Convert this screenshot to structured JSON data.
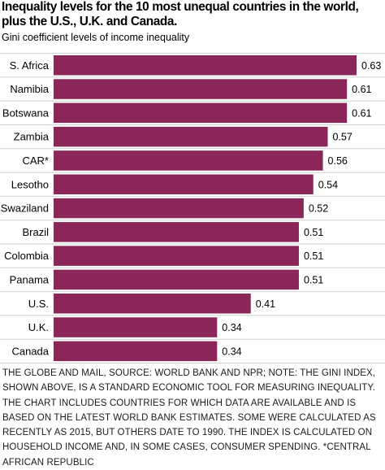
{
  "title": "Inequality levels for the 10 most unequal countries in the world, plus the U.S., U.K. and Canada.",
  "subtitle": "Gini coefficient levels of income inequality",
  "note": "THE GLOBE AND MAIL, SOURCE: WORLD BANK AND NPR; NOTE: THE GINI INDEX, SHOWN ABOVE, IS A STANDARD ECONOMIC TOOL FOR MEASURING INEQUALITY. THE CHART INCLUDES COUNTRIES FOR WHICH DATA ARE AVAILABLE AND IS BASED ON THE LATEST WORLD BANK ESTIMATES. SOME WERE CALCULATED AS RECENTLY AS 2015, BUT OTHERS DATE TO 1990. THE INDEX IS CALCULATED ON HOUSEHOLD INCOME AND, IN SOME CASES, CONSUMER SPENDING. *CENTRAL AFRICAN REPUBLIC",
  "colors": {
    "bar": "#8a2758",
    "grid": "#cfcfcf",
    "text": "#000000"
  },
  "chart_data": {
    "type": "bar",
    "orientation": "horizontal",
    "title": "Inequality levels for the 10 most unequal countries in the world, plus the U.S., U.K. and Canada.",
    "subtitle": "Gini coefficient levels of income inequality",
    "categories": [
      "S. Africa",
      "Namibia",
      "Botswana",
      "Zambia",
      "CAR*",
      "Lesotho",
      "Swaziland",
      "Brazil",
      "Colombia",
      "Panama",
      "U.S.",
      "U.K.",
      "Canada"
    ],
    "values": [
      0.63,
      0.61,
      0.61,
      0.57,
      0.56,
      0.54,
      0.52,
      0.51,
      0.51,
      0.51,
      0.41,
      0.34,
      0.34
    ],
    "value_labels": [
      "0.63",
      "0.61",
      "0.61",
      "0.57",
      "0.56",
      "0.54",
      "0.52",
      "0.51",
      "0.51",
      "0.51",
      "0.41",
      "0.34",
      "0.34"
    ],
    "xlim": [
      0,
      0.63
    ],
    "grid": true
  }
}
